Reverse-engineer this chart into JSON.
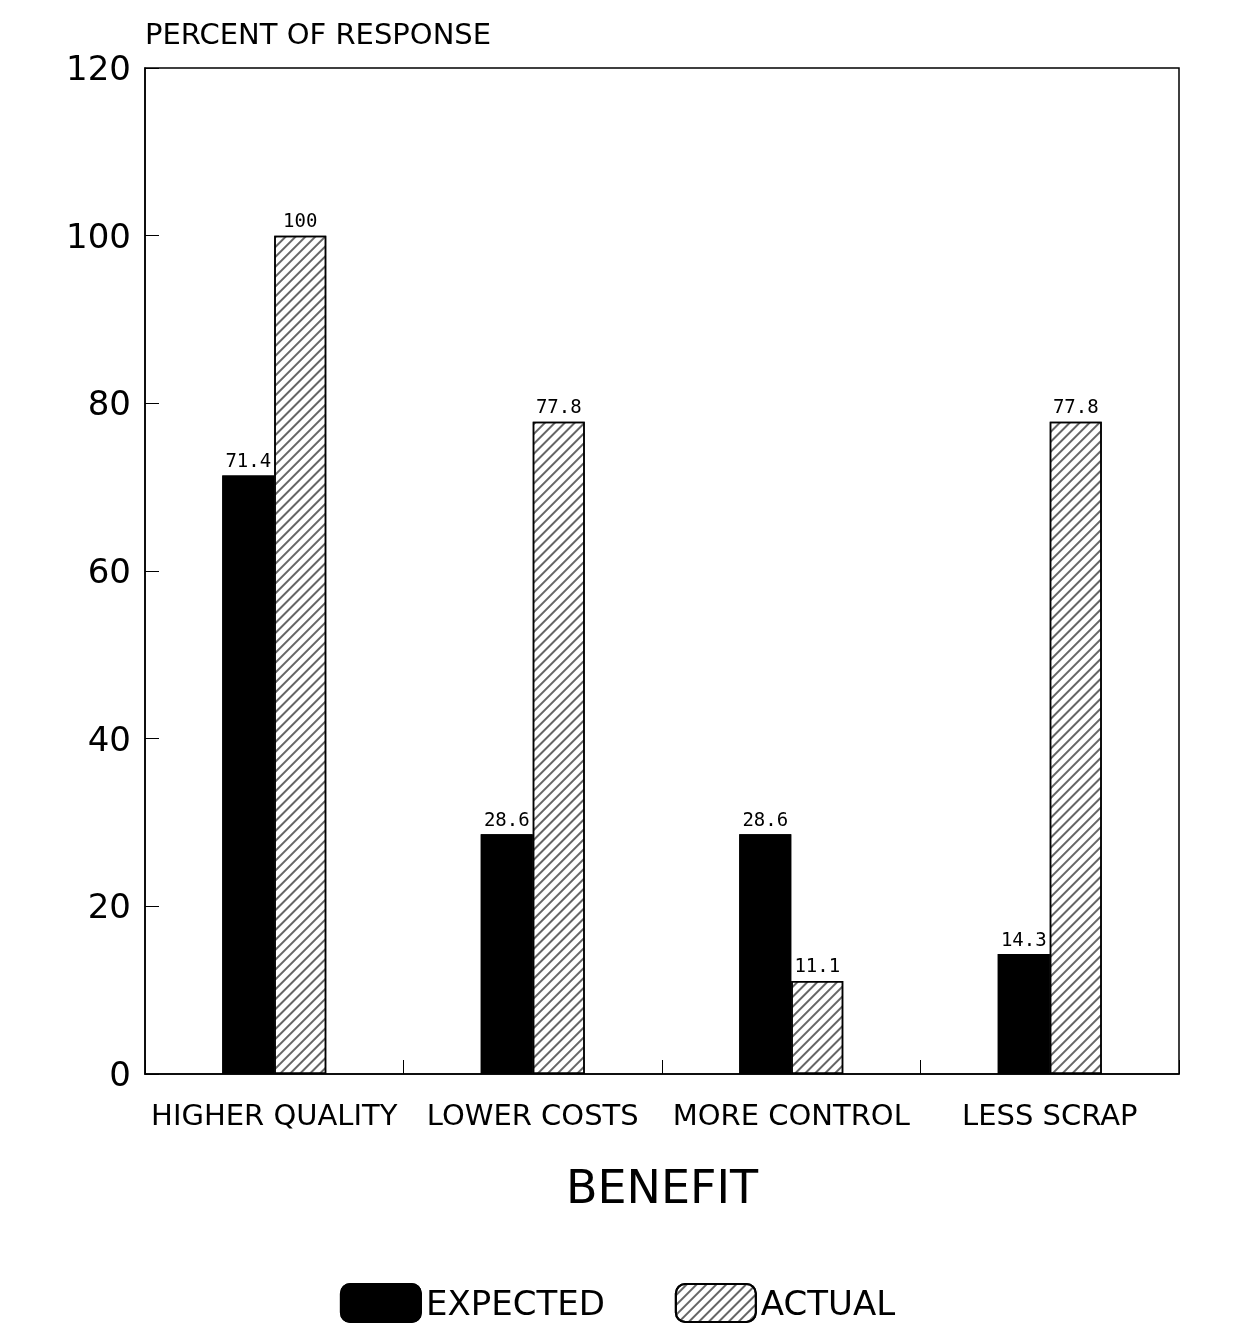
{
  "chart_data": {
    "type": "bar",
    "ylabel": "PERCENT OF RESPONSE",
    "xlabel": "BENEFIT",
    "categories": [
      "HIGHER QUALITY",
      "LOWER COSTS",
      "MORE CONTROL",
      "LESS SCRAP"
    ],
    "series": [
      {
        "name": "EXPECTED",
        "color": "#000000",
        "values": [
          71.4,
          28.6,
          28.6,
          14.3
        ]
      },
      {
        "name": "ACTUAL",
        "color": "#ffffff",
        "values": [
          100,
          77.8,
          11.1,
          77.8
        ]
      }
    ],
    "ylim": [
      0,
      120
    ],
    "yticks": [
      0,
      20,
      40,
      60,
      80,
      100,
      120
    ],
    "grid": false,
    "legend": "bottom",
    "data_labels": true
  }
}
